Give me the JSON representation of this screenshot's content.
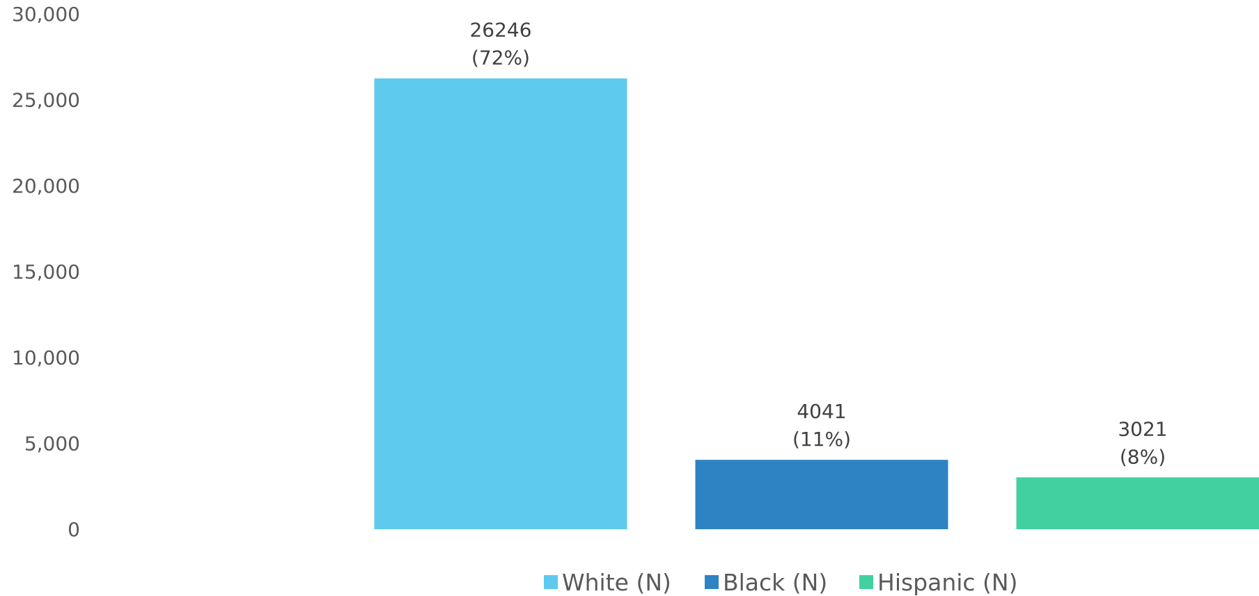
{
  "chart_data": {
    "type": "bar",
    "categories": [
      "White (N)",
      "Black (N)",
      "Hispanic (N)"
    ],
    "values": [
      26246,
      4041,
      3021
    ],
    "percent_labels": [
      "(72%)",
      "(11%)",
      "(8%)"
    ],
    "value_labels": [
      "26246",
      "4041",
      "3021"
    ],
    "colors": [
      "#5ECAEE",
      "#2E83C3",
      "#42D0A0"
    ],
    "ylim": [
      0,
      30000
    ],
    "yticks": [
      0,
      5000,
      10000,
      15000,
      20000,
      25000,
      30000
    ],
    "ytick_labels": [
      "0",
      "5,000",
      "10,000",
      "15,000",
      "20,000",
      "25,000",
      "30,000"
    ],
    "grid": false,
    "legend": {
      "placement": "bottom",
      "entries": [
        "White (N)",
        "Black (N)",
        "Hispanic (N)"
      ]
    },
    "title": "",
    "xlabel": "",
    "ylabel": ""
  }
}
